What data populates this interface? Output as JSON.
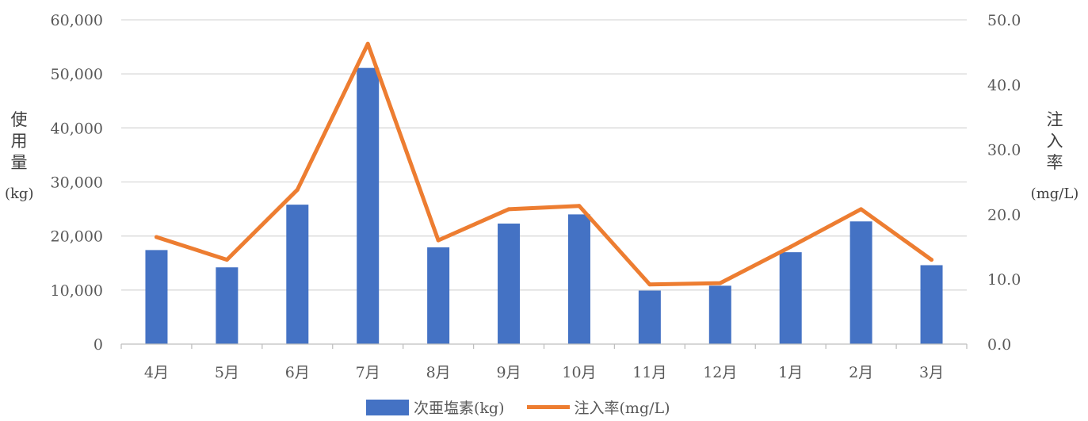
{
  "colors": {
    "bar": "#4472C4",
    "line": "#ED7D31",
    "grid": "#D9D9D9",
    "axis": "#BFBFBF",
    "text": "#595959"
  },
  "labels": {
    "left_axis_chars": [
      "使",
      "用",
      "量"
    ],
    "left_axis_unit": "(kg)",
    "right_axis_chars": [
      "注",
      "入",
      "率"
    ],
    "right_axis_unit": "(mg/L)"
  },
  "legend": {
    "bar": "次亜塩素(kg)",
    "line": "注入率(mg/L)"
  },
  "chart_data": {
    "type": "bar+line",
    "categories": [
      "4月",
      "5月",
      "6月",
      "7月",
      "8月",
      "9月",
      "10月",
      "11月",
      "12月",
      "1月",
      "2月",
      "3月"
    ],
    "series": [
      {
        "name": "次亜塩素(kg)",
        "type": "bar",
        "axis": "left",
        "values": [
          17400,
          14200,
          25800,
          51100,
          17900,
          22300,
          24000,
          9900,
          10800,
          17000,
          22700,
          14600
        ]
      },
      {
        "name": "注入率(mg/L)",
        "type": "line",
        "axis": "right",
        "values": [
          16.5,
          13.0,
          23.8,
          46.3,
          16.0,
          20.8,
          21.3,
          9.2,
          9.4,
          15.0,
          20.8,
          13.0
        ]
      }
    ],
    "y_left": {
      "min": 0,
      "max": 60000,
      "step": 10000,
      "tick_labels": [
        "0",
        "10,000",
        "20,000",
        "30,000",
        "40,000",
        "50,000",
        "60,000"
      ]
    },
    "y_right": {
      "min": 0,
      "max": 50,
      "step": 10,
      "tick_labels": [
        "0.0",
        "10.0",
        "20.0",
        "30.0",
        "40.0",
        "50.0"
      ]
    },
    "grid": true,
    "legend_position": "bottom"
  }
}
